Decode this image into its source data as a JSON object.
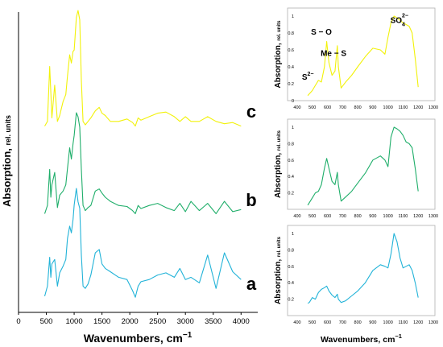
{
  "chart_data": [
    {
      "type": "line",
      "panel": "main",
      "xlabel": "Wavenumbers, cm",
      "xlabel_sup": "−1",
      "ylabel": "Absorption,",
      "ylabel_unit": "rel. units",
      "xlim": [
        0,
        4300
      ],
      "xticks": [
        0,
        500,
        1000,
        1500,
        2000,
        2500,
        3000,
        3500,
        4000
      ],
      "grid": false,
      "series": [
        {
          "name": "c",
          "color": "#f2f20a",
          "x": [
            470,
            520,
            560,
            580,
            600,
            650,
            700,
            740,
            800,
            850,
            880,
            920,
            950,
            980,
            1000,
            1040,
            1070,
            1100,
            1130,
            1160,
            1200,
            1250,
            1300,
            1380,
            1450,
            1500,
            1560,
            1650,
            1800,
            1950,
            2050,
            2100,
            2150,
            2200,
            2350,
            2500,
            2650,
            2800,
            2900,
            3000,
            3100,
            3250,
            3400,
            3550,
            3700,
            3850,
            4000
          ],
          "y": [
            0.01,
            0.05,
            0.52,
            0.3,
            0.08,
            0.36,
            0.05,
            0.1,
            0.22,
            0.28,
            0.44,
            0.62,
            0.55,
            0.65,
            0.66,
            0.94,
            1.0,
            0.92,
            0.4,
            0.05,
            0.02,
            0.05,
            0.08,
            0.14,
            0.17,
            0.12,
            0.1,
            0.05,
            0.05,
            0.07,
            0.04,
            0.01,
            0.08,
            0.06,
            0.09,
            0.12,
            0.13,
            0.09,
            0.05,
            0.09,
            0.05,
            0.05,
            0.09,
            0.05,
            0.03,
            0.04,
            0.01
          ]
        },
        {
          "name": "b",
          "color": "#1fae6a",
          "x": [
            470,
            520,
            560,
            580,
            600,
            650,
            700,
            740,
            800,
            850,
            880,
            920,
            950,
            980,
            1000,
            1040,
            1070,
            1100,
            1130,
            1160,
            1200,
            1250,
            1300,
            1380,
            1450,
            1500,
            1560,
            1650,
            1800,
            1950,
            2050,
            2100,
            2150,
            2200,
            2350,
            2500,
            2650,
            2800,
            2900,
            3000,
            3100,
            3250,
            3400,
            3550,
            3700,
            3850,
            4000
          ],
          "y": [
            0.02,
            0.1,
            0.45,
            0.18,
            0.3,
            0.42,
            0.08,
            0.2,
            0.24,
            0.3,
            0.46,
            0.66,
            0.55,
            0.7,
            0.78,
            1.0,
            0.96,
            0.86,
            0.45,
            0.1,
            0.05,
            0.08,
            0.1,
            0.24,
            0.26,
            0.22,
            0.18,
            0.14,
            0.1,
            0.09,
            0.05,
            0.02,
            0.1,
            0.07,
            0.1,
            0.12,
            0.08,
            0.05,
            0.12,
            0.04,
            0.14,
            0.05,
            0.12,
            0.02,
            0.14,
            0.04,
            0.06
          ]
        },
        {
          "name": "a",
          "color": "#22b3d8",
          "x": [
            470,
            520,
            560,
            580,
            600,
            650,
            700,
            740,
            800,
            850,
            880,
            920,
            950,
            980,
            1000,
            1040,
            1070,
            1100,
            1130,
            1160,
            1200,
            1250,
            1300,
            1380,
            1450,
            1500,
            1560,
            1650,
            1800,
            1950,
            2050,
            2100,
            2150,
            2200,
            2350,
            2500,
            2650,
            2800,
            2900,
            3000,
            3100,
            3250,
            3400,
            3550,
            3700,
            3850,
            4000
          ],
          "y": [
            0.03,
            0.12,
            0.38,
            0.2,
            0.32,
            0.36,
            0.12,
            0.24,
            0.3,
            0.36,
            0.55,
            0.66,
            0.6,
            0.72,
            0.85,
            1.0,
            0.88,
            0.82,
            0.4,
            0.12,
            0.1,
            0.14,
            0.22,
            0.42,
            0.45,
            0.32,
            0.28,
            0.25,
            0.2,
            0.18,
            0.08,
            0.02,
            0.12,
            0.16,
            0.18,
            0.22,
            0.24,
            0.2,
            0.28,
            0.18,
            0.2,
            0.15,
            0.4,
            0.1,
            0.42,
            0.25,
            0.18
          ]
        }
      ]
    },
    {
      "type": "line",
      "panel": "top-right",
      "xlabel": "",
      "ylabel": "Absorption,",
      "ylabel_unit": "rel. units",
      "xlim": [
        400,
        1300
      ],
      "ylim": [
        0,
        1
      ],
      "xticks": [
        400,
        500,
        600,
        700,
        800,
        900,
        1000,
        1100,
        1200,
        1300
      ],
      "yticks": [
        0,
        0.2,
        0.4,
        0.6,
        0.8,
        1
      ],
      "annotations": [
        {
          "text": "S",
          "sup": "2−",
          "x": 470,
          "y": 0.25
        },
        {
          "text": "S − O",
          "x": 560,
          "y": 0.78
        },
        {
          "text": "Me − S",
          "x": 640,
          "y": 0.53
        },
        {
          "text": "SO",
          "sub": "4",
          "sup": "2−",
          "x": 1075,
          "y": 0.92
        }
      ],
      "series": [
        {
          "color": "#f2f20a",
          "x": [
            470,
            480,
            500,
            520,
            540,
            560,
            580,
            595,
            610,
            630,
            650,
            665,
            672,
            690,
            720,
            760,
            800,
            850,
            900,
            950,
            980,
            1000,
            1020,
            1040,
            1060,
            1080,
            1100,
            1120,
            1140,
            1160,
            1180,
            1200
          ],
          "y": [
            0.06,
            0.08,
            0.12,
            0.18,
            0.24,
            0.22,
            0.4,
            0.7,
            0.45,
            0.3,
            0.35,
            0.65,
            0.4,
            0.15,
            0.22,
            0.3,
            0.4,
            0.52,
            0.62,
            0.6,
            0.55,
            0.75,
            0.92,
            1.0,
            0.98,
            0.95,
            0.92,
            0.9,
            0.88,
            0.8,
            0.5,
            0.16
          ]
        }
      ]
    },
    {
      "type": "line",
      "panel": "middle-right",
      "xlabel": "",
      "ylabel": "Absorption,",
      "ylabel_unit": "rel. units",
      "xlim": [
        400,
        1300
      ],
      "ylim": [
        0,
        1
      ],
      "xticks": [
        400,
        500,
        600,
        700,
        800,
        900,
        1000,
        1100,
        1200,
        1300
      ],
      "yticks": [
        0.2,
        0.4,
        0.6,
        0.8,
        1
      ],
      "series": [
        {
          "color": "#1fae6a",
          "x": [
            470,
            480,
            500,
            520,
            540,
            560,
            580,
            595,
            610,
            630,
            650,
            665,
            672,
            690,
            720,
            760,
            800,
            850,
            900,
            950,
            980,
            1000,
            1020,
            1040,
            1060,
            1080,
            1100,
            1120,
            1140,
            1160,
            1180,
            1200
          ],
          "y": [
            0.05,
            0.08,
            0.14,
            0.2,
            0.22,
            0.3,
            0.5,
            0.62,
            0.5,
            0.34,
            0.3,
            0.45,
            0.3,
            0.1,
            0.15,
            0.22,
            0.32,
            0.44,
            0.6,
            0.65,
            0.6,
            0.52,
            0.88,
            1.0,
            0.98,
            0.95,
            0.9,
            0.82,
            0.8,
            0.75,
            0.5,
            0.22
          ]
        }
      ]
    },
    {
      "type": "line",
      "panel": "bottom-right",
      "xlabel": "Wavenumbers, cm",
      "xlabel_sup": "−1",
      "ylabel": "Absorption,",
      "ylabel_unit": "rel. units",
      "xlim": [
        400,
        1300
      ],
      "ylim": [
        0,
        1
      ],
      "xticks": [
        400,
        500,
        600,
        700,
        800,
        900,
        1000,
        1100,
        1200,
        1300
      ],
      "yticks": [
        0.2,
        0.4,
        0.6,
        0.8,
        1
      ],
      "series": [
        {
          "color": "#22b3d8",
          "x": [
            470,
            480,
            500,
            520,
            540,
            560,
            580,
            595,
            610,
            630,
            650,
            665,
            672,
            690,
            720,
            760,
            800,
            850,
            900,
            950,
            980,
            1000,
            1020,
            1040,
            1060,
            1080,
            1100,
            1120,
            1140,
            1160,
            1180,
            1200
          ],
          "y": [
            0.15,
            0.16,
            0.22,
            0.2,
            0.28,
            0.32,
            0.34,
            0.36,
            0.3,
            0.25,
            0.22,
            0.26,
            0.2,
            0.16,
            0.18,
            0.24,
            0.3,
            0.4,
            0.55,
            0.62,
            0.6,
            0.58,
            0.75,
            1.0,
            0.9,
            0.7,
            0.58,
            0.6,
            0.62,
            0.55,
            0.4,
            0.22
          ]
        }
      ]
    }
  ]
}
